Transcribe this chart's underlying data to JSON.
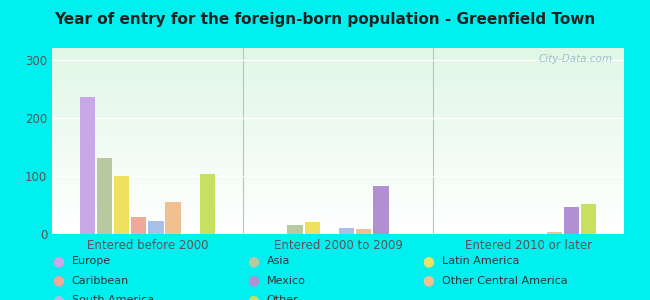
{
  "title": "Year of entry for the foreign-born population - Greenfield Town",
  "categories": [
    "Entered before 2000",
    "Entered 2000 to 2009",
    "Entered 2010 or later"
  ],
  "series": {
    "Europe": [
      235,
      0,
      0
    ],
    "Asia": [
      130,
      15,
      0
    ],
    "Latin America": [
      100,
      20,
      0
    ],
    "Caribbean": [
      30,
      0,
      0
    ],
    "Mexico": [
      0,
      83,
      47
    ],
    "Other": [
      103,
      0,
      52
    ],
    "South America": [
      22,
      10,
      0
    ],
    "Other Central America": [
      55,
      9,
      3
    ]
  },
  "colors": {
    "Europe": "#c8a8e8",
    "Asia": "#b8c8a0",
    "Latin America": "#f0e060",
    "Caribbean": "#f0a898",
    "Mexico": "#b090d0",
    "Other": "#c8e060",
    "South America": "#a8c0e8",
    "Other Central America": "#f0c090"
  },
  "bar_order": [
    "Europe",
    "Asia",
    "Latin America",
    "Caribbean",
    "South America",
    "Other Central America",
    "Mexico",
    "Other"
  ],
  "ylim": [
    0,
    320
  ],
  "yticks": [
    0,
    100,
    200,
    300
  ],
  "bg_color": "#00f0f0",
  "plot_bg": "#e8f5ee",
  "watermark": "City-Data.com"
}
